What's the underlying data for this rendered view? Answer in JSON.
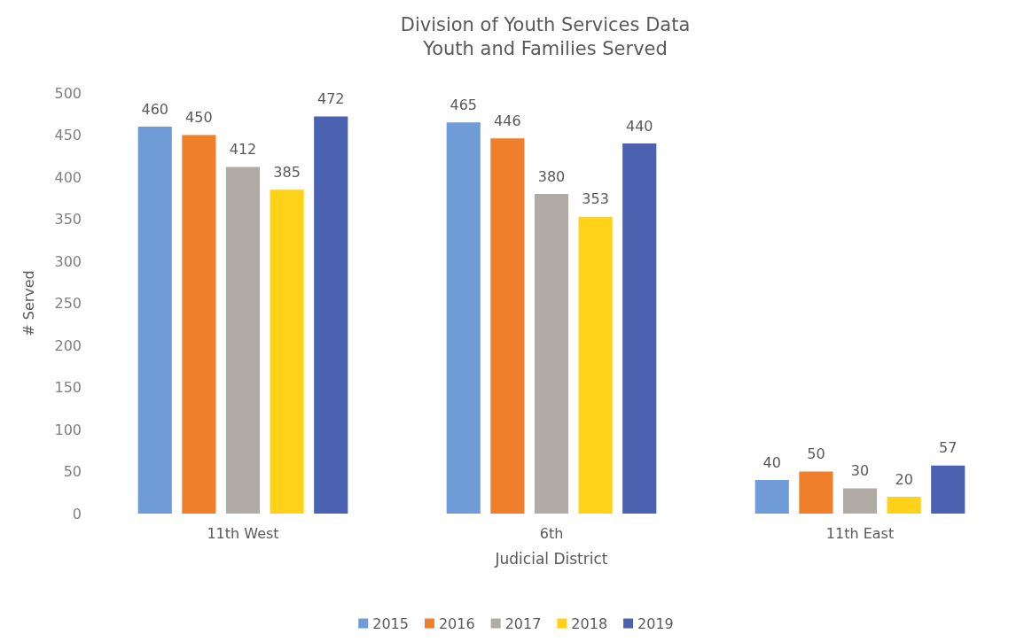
{
  "chart_data": {
    "type": "bar",
    "title": "Division of Youth Services Data",
    "subtitle": "Youth and Families Served",
    "xlabel": "Judicial District",
    "ylabel": "# Served",
    "categories": [
      "11th West",
      "6th",
      "11th East"
    ],
    "series": [
      {
        "name": "2015",
        "color": "#6f9bd6",
        "values": [
          460,
          465,
          40
        ]
      },
      {
        "name": "2016",
        "color": "#f07f2c",
        "values": [
          450,
          446,
          50
        ]
      },
      {
        "name": "2017",
        "color": "#b0aba5",
        "values": [
          412,
          380,
          30
        ]
      },
      {
        "name": "2018",
        "color": "#ffd21a",
        "values": [
          385,
          353,
          20
        ]
      },
      {
        "name": "2019",
        "color": "#4a62b0",
        "values": [
          472,
          440,
          57
        ]
      }
    ],
    "ylim": [
      0,
      500
    ],
    "yticks": [
      0,
      50,
      100,
      150,
      200,
      250,
      300,
      350,
      400,
      450,
      500
    ],
    "grid": false,
    "legend": "bottom",
    "data_labels": true
  }
}
